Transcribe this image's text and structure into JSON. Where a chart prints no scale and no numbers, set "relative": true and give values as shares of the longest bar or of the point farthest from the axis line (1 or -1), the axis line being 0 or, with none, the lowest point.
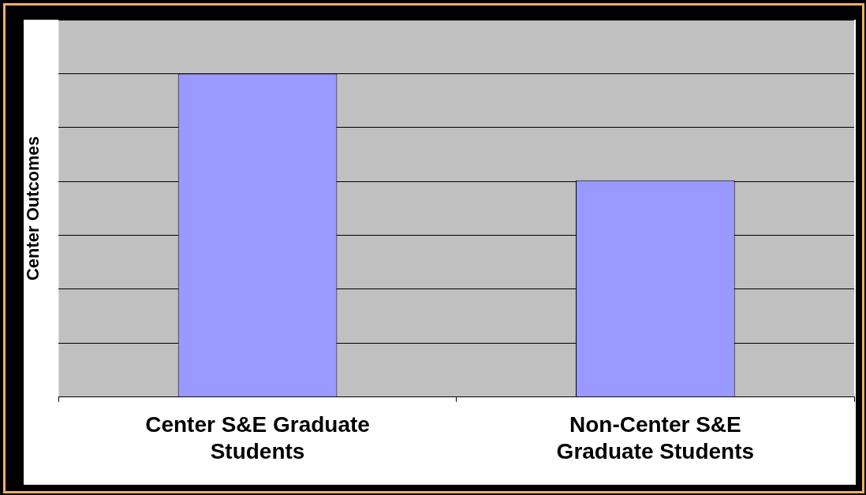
{
  "chart_data": {
    "type": "bar",
    "ylabel": "Center Outcomes",
    "categories": [
      "Center S&E Graduate Students",
      "Non-Center S&E Graduate Students"
    ],
    "values": [
      1,
      0.67
    ],
    "color": "#9999ff",
    "relative": true,
    "grid": "y"
  }
}
